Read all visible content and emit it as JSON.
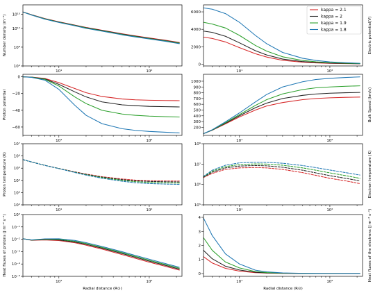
{
  "chart_data": [
    {
      "type": "line",
      "ylabel": "Number density (m⁻³)",
      "xscale": "log",
      "yscale": "log",
      "xlim": [
        4,
        230
      ],
      "ylim": [
        10000,
        1e+17
      ],
      "xticks": [
        {
          "v": 10,
          "label": "10¹"
        },
        {
          "v": 100,
          "label": "10²"
        }
      ],
      "yticks": [
        {
          "v": 10000,
          "label": "10⁴"
        },
        {
          "v": 100000000.0,
          "label": "10⁸"
        },
        {
          "v": 1000000000000.0,
          "label": "10¹²"
        },
        {
          "v": 1000000000000000.0,
          "label": "10¹⁵"
        }
      ],
      "x": [
        4,
        5,
        7,
        10,
        15,
        20,
        30,
        50,
        70,
        100,
        150,
        215
      ],
      "series": [
        {
          "name": "kappa = 2.1",
          "color": "#d62728",
          "values": [
            3000000000000000.0,
            800000000000000.0,
            120000000000000.0,
            25000000000000.0,
            5000000000000.0,
            1600000000000.0,
            400000000000.0,
            70000000000.0,
            25000000000.0,
            9000000000.0,
            3000000000.0,
            1000000000.0
          ]
        },
        {
          "name": "kappa = 2",
          "color": "#222222",
          "values": [
            3000000000000000.0,
            750000000000000.0,
            110000000000000.0,
            22000000000000.0,
            4500000000000.0,
            1400000000000.0,
            350000000000.0,
            60000000000.0,
            21000000000.0,
            7500000000.0,
            2500000000.0,
            800000000.0
          ]
        },
        {
          "name": "kappa = 1.9",
          "color": "#2ca02c",
          "values": [
            3000000000000000.0,
            700000000000000.0,
            100000000000000.0,
            20000000000000.0,
            4000000000000.0,
            1200000000000.0,
            300000000000.0,
            50000000000.0,
            18000000000.0,
            6500000000.0,
            2200000000.0,
            700000000.0
          ]
        },
        {
          "name": "kappa = 1.8",
          "color": "#1f77b4",
          "values": [
            3000000000000000.0,
            650000000000000.0,
            90000000000000.0,
            18000000000000.0,
            3500000000000.0,
            1000000000000.0,
            250000000000.0,
            42000000000.0,
            15000000000.0,
            5500000000.0,
            1800000000.0,
            550000000.0
          ]
        }
      ]
    },
    {
      "type": "line",
      "ylabel": "Electric potential(V)",
      "xscale": "log",
      "yscale": "linear",
      "xlim": [
        4,
        230
      ],
      "ylim": [
        -200,
        6800
      ],
      "xticks": [
        {
          "v": 10,
          "label": "10¹"
        },
        {
          "v": 100,
          "label": "10²"
        }
      ],
      "yticks": [
        {
          "v": 0,
          "label": "0"
        },
        {
          "v": 2000,
          "label": "2000"
        },
        {
          "v": 4000,
          "label": "4000"
        },
        {
          "v": 6000,
          "label": "6000"
        }
      ],
      "legend": {
        "position": "top-right",
        "entries": [
          "kappa = 2.1",
          "kappa = 2",
          "kappa = 1.9",
          "kappa = 1.8"
        ]
      },
      "x": [
        4,
        5,
        7,
        10,
        15,
        20,
        30,
        50,
        70,
        100,
        150,
        215
      ],
      "series": [
        {
          "name": "kappa = 2.1",
          "color": "#d62728",
          "values": [
            3100,
            2950,
            2550,
            1900,
            1200,
            820,
            450,
            230,
            150,
            100,
            70,
            50
          ]
        },
        {
          "name": "kappa = 2",
          "color": "#222222",
          "values": [
            3800,
            3650,
            3200,
            2450,
            1550,
            1060,
            590,
            300,
            200,
            130,
            90,
            60
          ]
        },
        {
          "name": "kappa = 1.9",
          "color": "#2ca02c",
          "values": [
            4800,
            4600,
            4150,
            3300,
            2150,
            1500,
            850,
            430,
            280,
            180,
            120,
            80
          ]
        },
        {
          "name": "kappa = 1.8",
          "color": "#1f77b4",
          "values": [
            6450,
            6300,
            5800,
            4800,
            3300,
            2350,
            1350,
            680,
            430,
            270,
            170,
            110
          ]
        }
      ]
    },
    {
      "type": "line",
      "ylabel": "Proton potential",
      "xscale": "log",
      "yscale": "linear",
      "xlim": [
        4,
        230
      ],
      "ylim": [
        -70,
        3
      ],
      "xticks": [
        {
          "v": 10,
          "label": "10¹"
        },
        {
          "v": 100,
          "label": "10²"
        }
      ],
      "yticks": [
        {
          "v": 0,
          "label": "0"
        },
        {
          "v": -20,
          "label": "−20"
        },
        {
          "v": -40,
          "label": "−40"
        },
        {
          "v": -60,
          "label": "−60"
        }
      ],
      "x": [
        4,
        5,
        7,
        10,
        15,
        20,
        30,
        50,
        70,
        100,
        150,
        215
      ],
      "series": [
        {
          "name": "kappa = 2.1",
          "color": "#d62728",
          "values": [
            0,
            -0.3,
            -2,
            -7,
            -14,
            -19,
            -23.5,
            -26.5,
            -27.5,
            -28,
            -28.3,
            -28.5
          ]
        },
        {
          "name": "kappa = 2",
          "color": "#222222",
          "values": [
            0,
            -0.4,
            -2.5,
            -9,
            -18,
            -24,
            -30,
            -33.5,
            -34.5,
            -35.3,
            -35.7,
            -36
          ]
        },
        {
          "name": "kappa = 1.9",
          "color": "#2ca02c",
          "values": [
            0,
            -0.5,
            -3,
            -11,
            -24,
            -32,
            -40,
            -44.5,
            -46,
            -47,
            -47.6,
            -48
          ]
        },
        {
          "name": "kappa = 1.8",
          "color": "#1f77b4",
          "values": [
            0,
            -0.7,
            -4,
            -15,
            -34,
            -46,
            -56,
            -62,
            -64,
            -65.3,
            -66.2,
            -67
          ]
        }
      ]
    },
    {
      "type": "line",
      "ylabel": "Bulk Speed (km/s)",
      "xscale": "log",
      "yscale": "linear",
      "xlim": [
        4,
        230
      ],
      "ylim": [
        60,
        1120
      ],
      "xticks": [
        {
          "v": 10,
          "label": "10¹"
        },
        {
          "v": 100,
          "label": "10²"
        }
      ],
      "yticks": [
        {
          "v": 200,
          "label": "200"
        },
        {
          "v": 300,
          "label": "300"
        },
        {
          "v": 400,
          "label": "400"
        },
        {
          "v": 500,
          "label": "500"
        },
        {
          "v": 600,
          "label": "600"
        },
        {
          "v": 700,
          "label": "700"
        },
        {
          "v": 800,
          "label": "800"
        },
        {
          "v": 900,
          "label": "900"
        },
        {
          "v": 1000,
          "label": "1000"
        }
      ],
      "x": [
        4,
        5,
        7,
        10,
        15,
        20,
        30,
        50,
        70,
        100,
        150,
        215
      ],
      "series": [
        {
          "name": "kappa = 2.1",
          "color": "#d62728",
          "values": [
            90,
            150,
            260,
            380,
            500,
            570,
            630,
            680,
            700,
            712,
            720,
            725
          ]
        },
        {
          "name": "kappa = 2",
          "color": "#222222",
          "values": [
            90,
            152,
            270,
            400,
            540,
            620,
            700,
            755,
            778,
            792,
            800,
            805
          ]
        },
        {
          "name": "kappa = 1.9",
          "color": "#2ca02c",
          "values": [
            90,
            155,
            280,
            420,
            580,
            680,
            780,
            855,
            885,
            900,
            912,
            920
          ]
        },
        {
          "name": "kappa = 1.8",
          "color": "#1f77b4",
          "values": [
            90,
            158,
            295,
            450,
            640,
            770,
            900,
            990,
            1030,
            1050,
            1065,
            1075
          ]
        }
      ]
    },
    {
      "type": "line",
      "ylabel": "Proton temperature (K)",
      "xscale": "log",
      "yscale": "log",
      "dashed": true,
      "xlim": [
        4,
        230
      ],
      "ylim": [
        100,
        10000000.0
      ],
      "xticks": [
        {
          "v": 10,
          "label": "10¹"
        },
        {
          "v": 100,
          "label": "10²"
        }
      ],
      "yticks": [
        {
          "v": 100,
          "label": "10²"
        },
        {
          "v": 1000,
          "label": "10³"
        },
        {
          "v": 10000,
          "label": "10⁴"
        },
        {
          "v": 100000,
          "label": "10⁵"
        },
        {
          "v": 1000000,
          "label": "10⁶"
        },
        {
          "v": 10000000,
          "label": "10⁷"
        }
      ],
      "x": [
        4,
        5,
        7,
        10,
        15,
        20,
        30,
        50,
        70,
        100,
        150,
        215
      ],
      "series": [
        {
          "name": "kappa = 2.1",
          "color": "#d62728",
          "values": [
            500000,
            320000,
            170000,
            95000,
            50000,
            33000,
            20000,
            13000,
            10500,
            9500,
            9000,
            8800
          ]
        },
        {
          "name": "kappa = 2",
          "color": "#222222",
          "values": [
            500000,
            320000,
            170000,
            94000,
            48000,
            31000,
            18500,
            11500,
            9200,
            8200,
            7700,
            7400
          ]
        },
        {
          "name": "kappa = 1.9",
          "color": "#2ca02c",
          "values": [
            500000,
            320000,
            170000,
            93000,
            46000,
            29000,
            17000,
            10000,
            7800,
            6800,
            6300,
            6000
          ]
        },
        {
          "name": "kappa = 1.8",
          "color": "#1f77b4",
          "values": [
            500000,
            320000,
            168000,
            92000,
            44000,
            27000,
            15000,
            8500,
            6400,
            5500,
            5000,
            4700
          ]
        }
      ]
    },
    {
      "type": "line",
      "ylabel": "Electron temperature (K)",
      "xscale": "log",
      "yscale": "log",
      "dashed": true,
      "xlim": [
        4,
        230
      ],
      "ylim": [
        100000,
        100000000
      ],
      "xticks": [
        {
          "v": 10,
          "label": "10¹"
        },
        {
          "v": 100,
          "label": "10²"
        }
      ],
      "yticks": [
        {
          "v": 100000,
          "label": "10⁵"
        },
        {
          "v": 1000000,
          "label": "10⁶"
        },
        {
          "v": 10000000,
          "label": "10⁷"
        },
        {
          "v": 100000000,
          "label": "10⁸"
        }
      ],
      "x": [
        4,
        5,
        7,
        10,
        15,
        20,
        30,
        50,
        70,
        100,
        150,
        215
      ],
      "series": [
        {
          "name": "kappa = 2.1",
          "color": "#d62728",
          "values": [
            2200000,
            3500000,
            5500000,
            6500000,
            6800000,
            6500000,
            5500000,
            3800000,
            2800000,
            2000000,
            1500000,
            1100000
          ]
        },
        {
          "name": "kappa = 2",
          "color": "#222222",
          "values": [
            2300000,
            4000000,
            6500000,
            8000000,
            8500000,
            8200000,
            7000000,
            5000000,
            3700000,
            2700000,
            2000000,
            1500000
          ]
        },
        {
          "name": "kappa = 1.9",
          "color": "#2ca02c",
          "values": [
            2400000,
            4500000,
            7500000,
            9500000,
            10200000,
            10000000,
            8800000,
            6500000,
            5000000,
            3700000,
            2700000,
            2000000
          ]
        },
        {
          "name": "kappa = 1.8",
          "color": "#1f77b4",
          "values": [
            2500000,
            5000000,
            8800000,
            11500000,
            12500000,
            12300000,
            11000000,
            8500000,
            6700000,
            5100000,
            3800000,
            2900000
          ]
        }
      ]
    },
    {
      "type": "line",
      "ylabel": "Heat fluxes of protons (J m⁻² s⁻¹)",
      "xlabel": "Radial distance (R⊙)",
      "xscale": "log",
      "yscale": "log",
      "xlim": [
        4,
        230
      ],
      "ylim": [
        1e-05,
        1
      ],
      "xticks": [
        {
          "v": 10,
          "label": "10¹"
        },
        {
          "v": 100,
          "label": "10²"
        }
      ],
      "yticks": [
        {
          "v": 1e-05,
          "label": "10⁻⁵"
        },
        {
          "v": 0.0001,
          "label": "10⁻⁴"
        },
        {
          "v": 0.001,
          "label": "10⁻³"
        },
        {
          "v": 0.01,
          "label": "10⁻²"
        },
        {
          "v": 0.1,
          "label": "10⁻¹"
        },
        {
          "v": 1,
          "label": "10⁰"
        }
      ],
      "x": [
        4,
        5,
        7,
        10,
        15,
        20,
        30,
        50,
        70,
        100,
        150,
        215
      ],
      "series": [
        {
          "name": "kappa = 2.1",
          "color": "#d62728",
          "values": [
            0.011,
            0.0082,
            0.0088,
            0.0078,
            0.0052,
            0.0033,
            0.0016,
            0.00058,
            0.00029,
            0.00014,
            6.5e-05,
            3.2e-05
          ]
        },
        {
          "name": "kappa = 2",
          "color": "#222222",
          "values": [
            0.011,
            0.0085,
            0.0095,
            0.0088,
            0.006,
            0.0039,
            0.0019,
            0.0007,
            0.00035,
            0.00017,
            7.8e-05,
            3.8e-05
          ]
        },
        {
          "name": "kappa = 1.9",
          "color": "#2ca02c",
          "values": [
            0.011,
            0.0087,
            0.01,
            0.0098,
            0.0069,
            0.0045,
            0.0022,
            0.00082,
            0.00041,
            0.0002,
            9.2e-05,
            4.5e-05
          ]
        },
        {
          "name": "kappa = 1.8",
          "color": "#1f77b4",
          "values": [
            0.011,
            0.0089,
            0.0108,
            0.011,
            0.008,
            0.0053,
            0.0026,
            0.00098,
            0.00049,
            0.00024,
            0.00011,
            5.4e-05
          ]
        }
      ]
    },
    {
      "type": "line",
      "ylabel": "Heat fluxes of the electrons (J m⁻² s⁻¹)",
      "xlabel": "Radial distance (R⊙)",
      "xscale": "log",
      "yscale": "linear",
      "xlim": [
        4,
        230
      ],
      "ylim": [
        -0.2,
        4.2
      ],
      "xticks": [
        {
          "v": 10,
          "label": "10¹"
        },
        {
          "v": 100,
          "label": "10²"
        }
      ],
      "yticks": [
        {
          "v": 0,
          "label": "0"
        },
        {
          "v": 1,
          "label": "1"
        },
        {
          "v": 2,
          "label": "2"
        },
        {
          "v": 3,
          "label": "3"
        },
        {
          "v": 4,
          "label": "4"
        }
      ],
      "x": [
        4,
        5,
        7,
        10,
        15,
        20,
        30,
        50,
        70,
        100,
        150,
        215
      ],
      "series": [
        {
          "name": "kappa = 2.1",
          "color": "#d62728",
          "values": [
            1.2,
            0.75,
            0.37,
            0.17,
            0.06,
            0.03,
            0.012,
            0.004,
            0.002,
            0.001,
            0.0005,
            0.0002
          ]
        },
        {
          "name": "kappa = 2",
          "color": "#222222",
          "values": [
            1.65,
            1.05,
            0.52,
            0.25,
            0.09,
            0.045,
            0.018,
            0.006,
            0.003,
            0.0015,
            0.0007,
            0.0003
          ]
        },
        {
          "name": "kappa = 1.9",
          "color": "#2ca02c",
          "values": [
            2.55,
            1.65,
            0.82,
            0.4,
            0.14,
            0.07,
            0.028,
            0.009,
            0.004,
            0.002,
            0.001,
            0.0004
          ]
        },
        {
          "name": "kappa = 1.8",
          "color": "#1f77b4",
          "values": [
            3.95,
            2.7,
            1.4,
            0.68,
            0.24,
            0.12,
            0.048,
            0.015,
            0.007,
            0.003,
            0.0015,
            0.0006
          ]
        }
      ]
    }
  ]
}
